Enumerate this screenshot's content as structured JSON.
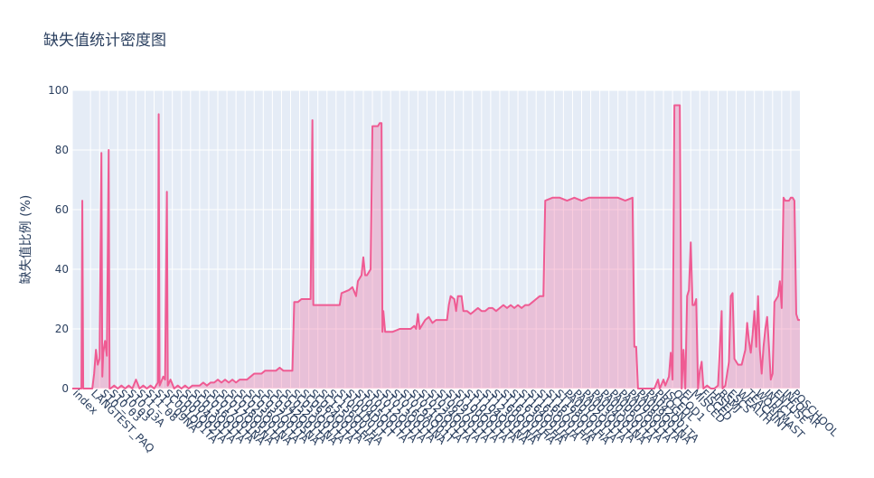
{
  "chart_data": {
    "type": "area",
    "title": "缺失值统计密度图",
    "xlabel": "",
    "ylabel": "缺失值比例 (%)",
    "ylim": [
      0,
      100
    ],
    "yticks": [
      0,
      20,
      40,
      60,
      80,
      100
    ],
    "grid": true,
    "colors": {
      "line": "#ef5b93",
      "fill": "#ef5b93",
      "plot_bg": "#e5ecf6",
      "grid": "#ffffff",
      "text": "#2a3f5f"
    },
    "x_count": 401,
    "tick_labels": [
      {
        "i": 0,
        "label": "index"
      },
      {
        "i": 10,
        "label": "LANGTEST_PAQ"
      },
      {
        "i": 15,
        "label": "S10"
      },
      {
        "i": 20,
        "label": "S10_03"
      },
      {
        "i": 25,
        "label": "S10_03"
      },
      {
        "i": 30,
        "label": "S10_03A"
      },
      {
        "i": 35,
        "label": "S11"
      },
      {
        "i": 40,
        "label": "S11_08"
      },
      {
        "i": 45,
        "label": "S11_09NA"
      },
      {
        "i": 50,
        "label": "SC001Q01TA"
      },
      {
        "i": 55,
        "label": "SC001Q02TA"
      },
      {
        "i": 60,
        "label": "SC004Q01TA"
      },
      {
        "i": 65,
        "label": "SC013Q01TA"
      },
      {
        "i": 70,
        "label": "SC016Q01TA"
      },
      {
        "i": 75,
        "label": "SC017Q01NA"
      },
      {
        "i": 80,
        "label": "SC017Q05NA"
      },
      {
        "i": 85,
        "label": "SC018Q01TA"
      },
      {
        "i": 90,
        "label": "SC025Q01NA"
      },
      {
        "i": 95,
        "label": "SC036Q01TA"
      },
      {
        "i": 100,
        "label": "SC037Q01TA"
      },
      {
        "i": 105,
        "label": "SC037Q05NA"
      },
      {
        "i": 110,
        "label": "SC042Q01TA"
      },
      {
        "i": 115,
        "label": "SC052Q01NA"
      },
      {
        "i": 120,
        "label": "SC053Q01TA"
      },
      {
        "i": 125,
        "label": "SC061Q01TA"
      },
      {
        "i": 130,
        "label": "SC064Q01TA"
      },
      {
        "i": 135,
        "label": "SC155Q01HA"
      },
      {
        "i": 140,
        "label": "SC156Q01HA"
      },
      {
        "i": 145,
        "label": "ST001D01T"
      },
      {
        "i": 150,
        "label": "ST004D01T"
      },
      {
        "i": 155,
        "label": "ST005Q01TA"
      },
      {
        "i": 160,
        "label": "ST011Q01TA"
      },
      {
        "i": 165,
        "label": "ST012Q01TA"
      },
      {
        "i": 170,
        "label": "ST013Q01TA"
      },
      {
        "i": 175,
        "label": "ST016Q01NA"
      },
      {
        "i": 180,
        "label": "ST019AQ01T"
      },
      {
        "i": 185,
        "label": "ST021Q01TA"
      },
      {
        "i": 190,
        "label": "ST022Q01TA"
      },
      {
        "i": 195,
        "label": "ST034Q01TA"
      },
      {
        "i": 200,
        "label": "ST062Q01TA"
      },
      {
        "i": 205,
        "label": "ST097Q01TA"
      },
      {
        "i": 210,
        "label": "ST100Q01TA"
      },
      {
        "i": 215,
        "label": "ST102Q01TA"
      },
      {
        "i": 220,
        "label": "ST104Q01NA"
      },
      {
        "i": 225,
        "label": "ST123Q01NA"
      },
      {
        "i": 230,
        "label": "ST160Q01IA"
      },
      {
        "i": 235,
        "label": "ST161Q01HA"
      },
      {
        "i": 240,
        "label": "ST163Q02HA"
      },
      {
        "i": 245,
        "label": "ST164Q01IA"
      },
      {
        "i": 250,
        "label": "ST165Q01IA"
      },
      {
        "i": 255,
        "label": "ST166Q01HA"
      },
      {
        "i": 260,
        "label": "ST167Q01IA"
      },
      {
        "i": 265,
        "label": "ST168Q01HA"
      },
      {
        "i": 270,
        "label": "PA001Q01TA"
      },
      {
        "i": 275,
        "label": "PA002Q01TA"
      },
      {
        "i": 280,
        "label": "PA003Q01TA"
      },
      {
        "i": 285,
        "label": "PA004Q01NA"
      },
      {
        "i": 290,
        "label": "PA005Q01TA"
      },
      {
        "i": 295,
        "label": "PA006Q01TA"
      },
      {
        "i": 300,
        "label": "PA007Q01TA"
      },
      {
        "i": 305,
        "label": "PA008Q01TA"
      },
      {
        "i": 310,
        "label": "PA009Q01NA"
      },
      {
        "i": 315,
        "label": "PA042Q01TA"
      },
      {
        "i": 320,
        "label": "PROGN"
      },
      {
        "i": 325,
        "label": "ISCEDL"
      },
      {
        "i": 330,
        "label": "OCOD1"
      },
      {
        "i": 335,
        "label": "EI"
      },
      {
        "i": 340,
        "label": "MISCED"
      },
      {
        "i": 345,
        "label": "FISCED"
      },
      {
        "i": 350,
        "label": "HISEI"
      },
      {
        "i": 355,
        "label": "BSMJ"
      },
      {
        "i": 360,
        "label": "ESCS"
      },
      {
        "i": 365,
        "label": "WEALTH"
      },
      {
        "i": 370,
        "label": "TEACHINT"
      },
      {
        "i": 375,
        "label": "WORKMAST"
      },
      {
        "i": 380,
        "label": "INTICT"
      },
      {
        "i": 385,
        "label": "ENTUSE"
      },
      {
        "i": 390,
        "label": "INFOCAR"
      },
      {
        "i": 395,
        "label": "POSCHOOL"
      }
    ],
    "series": [
      {
        "points": [
          [
            0,
            0
          ],
          [
            5,
            0
          ],
          [
            5.5,
            63
          ],
          [
            6,
            0
          ],
          [
            11,
            0
          ],
          [
            12,
            5
          ],
          [
            13,
            13
          ],
          [
            14,
            8
          ],
          [
            15,
            10
          ],
          [
            16,
            79
          ],
          [
            16.5,
            4
          ],
          [
            17,
            12
          ],
          [
            18,
            16
          ],
          [
            19,
            11
          ],
          [
            20,
            80
          ],
          [
            20.5,
            0
          ],
          [
            21,
            0
          ],
          [
            23,
            1
          ],
          [
            25,
            0
          ],
          [
            27,
            1
          ],
          [
            29,
            0
          ],
          [
            31,
            1
          ],
          [
            33,
            0
          ],
          [
            35,
            3
          ],
          [
            37,
            0
          ],
          [
            39,
            1
          ],
          [
            41,
            0
          ],
          [
            43,
            1
          ],
          [
            45,
            0
          ],
          [
            47,
            2
          ],
          [
            47.5,
            92
          ],
          [
            48,
            1
          ],
          [
            50,
            4
          ],
          [
            51,
            3
          ],
          [
            52,
            66
          ],
          [
            52.5,
            1
          ],
          [
            54,
            3
          ],
          [
            56,
            0
          ],
          [
            58,
            1
          ],
          [
            60,
            0
          ],
          [
            62,
            1
          ],
          [
            64,
            0
          ],
          [
            66,
            1
          ],
          [
            68,
            1
          ],
          [
            70,
            1
          ],
          [
            72,
            2
          ],
          [
            74,
            1
          ],
          [
            76,
            2
          ],
          [
            78,
            2
          ],
          [
            80,
            3
          ],
          [
            82,
            2
          ],
          [
            84,
            3
          ],
          [
            86,
            2
          ],
          [
            88,
            3
          ],
          [
            90,
            2
          ],
          [
            92,
            3
          ],
          [
            94,
            3
          ],
          [
            96,
            3
          ],
          [
            98,
            4
          ],
          [
            100,
            5
          ],
          [
            102,
            5
          ],
          [
            104,
            5
          ],
          [
            106,
            6
          ],
          [
            108,
            6
          ],
          [
            110,
            6
          ],
          [
            112,
            6
          ],
          [
            114,
            7
          ],
          [
            116,
            6
          ],
          [
            118,
            6
          ],
          [
            120,
            6
          ],
          [
            121,
            6
          ],
          [
            122,
            29
          ],
          [
            124,
            29
          ],
          [
            126,
            30
          ],
          [
            128,
            30
          ],
          [
            131,
            30
          ],
          [
            132,
            90
          ],
          [
            132.5,
            28
          ],
          [
            134,
            28
          ],
          [
            140,
            28
          ],
          [
            147,
            28
          ],
          [
            148,
            32
          ],
          [
            152,
            33
          ],
          [
            154,
            34
          ],
          [
            156,
            31
          ],
          [
            157,
            36
          ],
          [
            158,
            37
          ],
          [
            159,
            38
          ],
          [
            160,
            44
          ],
          [
            161,
            38
          ],
          [
            162,
            38
          ],
          [
            163,
            39
          ],
          [
            164,
            40
          ],
          [
            165,
            88
          ],
          [
            168,
            88
          ],
          [
            169,
            89
          ],
          [
            170,
            89
          ],
          [
            170.5,
            19
          ],
          [
            171,
            26
          ],
          [
            172,
            19
          ],
          [
            176,
            19
          ],
          [
            180,
            20
          ],
          [
            184,
            20
          ],
          [
            186,
            20
          ],
          [
            188,
            21
          ],
          [
            189,
            20
          ],
          [
            190,
            25
          ],
          [
            191,
            20
          ],
          [
            192,
            21
          ],
          [
            194,
            23
          ],
          [
            196,
            24
          ],
          [
            198,
            22
          ],
          [
            200,
            23
          ],
          [
            202,
            23
          ],
          [
            204,
            23
          ],
          [
            206,
            23
          ],
          [
            207,
            28
          ],
          [
            208,
            31
          ],
          [
            210,
            30
          ],
          [
            211,
            26
          ],
          [
            212,
            31
          ],
          [
            214,
            31
          ],
          [
            215,
            26
          ],
          [
            217,
            26
          ],
          [
            219,
            25
          ],
          [
            221,
            26
          ],
          [
            223,
            27
          ],
          [
            225,
            26
          ],
          [
            227,
            26
          ],
          [
            229,
            27
          ],
          [
            231,
            27
          ],
          [
            233,
            26
          ],
          [
            235,
            27
          ],
          [
            237,
            28
          ],
          [
            239,
            27
          ],
          [
            241,
            28
          ],
          [
            243,
            27
          ],
          [
            245,
            28
          ],
          [
            247,
            27
          ],
          [
            249,
            28
          ],
          [
            251,
            28
          ],
          [
            253,
            29
          ],
          [
            255,
            30
          ],
          [
            257,
            31
          ],
          [
            259,
            31
          ],
          [
            260,
            63
          ],
          [
            264,
            64
          ],
          [
            268,
            64
          ],
          [
            272,
            63
          ],
          [
            276,
            64
          ],
          [
            280,
            63
          ],
          [
            284,
            64
          ],
          [
            288,
            64
          ],
          [
            292,
            64
          ],
          [
            296,
            64
          ],
          [
            300,
            64
          ],
          [
            304,
            63
          ],
          [
            308,
            64
          ],
          [
            309,
            14
          ],
          [
            310,
            14
          ],
          [
            311,
            0
          ],
          [
            312,
            0
          ],
          [
            316,
            0
          ],
          [
            320,
            0
          ],
          [
            322,
            3
          ],
          [
            323,
            0
          ],
          [
            325,
            3
          ],
          [
            326,
            1
          ],
          [
            328,
            4
          ],
          [
            329,
            12
          ],
          [
            330,
            3
          ],
          [
            331,
            95
          ],
          [
            334,
            95
          ],
          [
            335,
            0
          ],
          [
            336,
            13
          ],
          [
            337,
            0
          ],
          [
            338,
            31
          ],
          [
            339,
            33
          ],
          [
            340,
            49
          ],
          [
            341,
            28
          ],
          [
            342,
            28
          ],
          [
            343,
            30
          ],
          [
            344,
            0
          ],
          [
            345,
            6
          ],
          [
            346,
            9
          ],
          [
            347,
            0
          ],
          [
            349,
            1
          ],
          [
            351,
            0
          ],
          [
            353,
            0
          ],
          [
            355,
            1
          ],
          [
            357,
            26
          ],
          [
            357.5,
            0
          ],
          [
            359,
            1
          ],
          [
            360,
            5
          ],
          [
            361,
            9
          ],
          [
            362,
            31
          ],
          [
            363,
            32
          ],
          [
            364,
            10
          ],
          [
            366,
            8
          ],
          [
            368,
            8
          ],
          [
            370,
            13
          ],
          [
            371,
            22
          ],
          [
            372,
            16
          ],
          [
            373,
            12
          ],
          [
            374,
            18
          ],
          [
            375,
            26
          ],
          [
            376,
            14
          ],
          [
            377,
            31
          ],
          [
            378,
            13
          ],
          [
            379,
            5
          ],
          [
            380,
            14
          ],
          [
            381,
            20
          ],
          [
            382,
            24
          ],
          [
            383,
            14
          ],
          [
            384,
            3
          ],
          [
            385,
            5
          ],
          [
            386,
            29
          ],
          [
            387,
            30
          ],
          [
            388,
            31
          ],
          [
            389,
            36
          ],
          [
            390,
            27
          ],
          [
            391,
            64
          ],
          [
            392,
            63
          ],
          [
            394,
            63
          ],
          [
            395,
            64
          ],
          [
            396,
            64
          ],
          [
            397,
            63
          ],
          [
            398,
            25
          ],
          [
            399,
            23
          ],
          [
            400,
            23
          ]
        ]
      }
    ]
  }
}
